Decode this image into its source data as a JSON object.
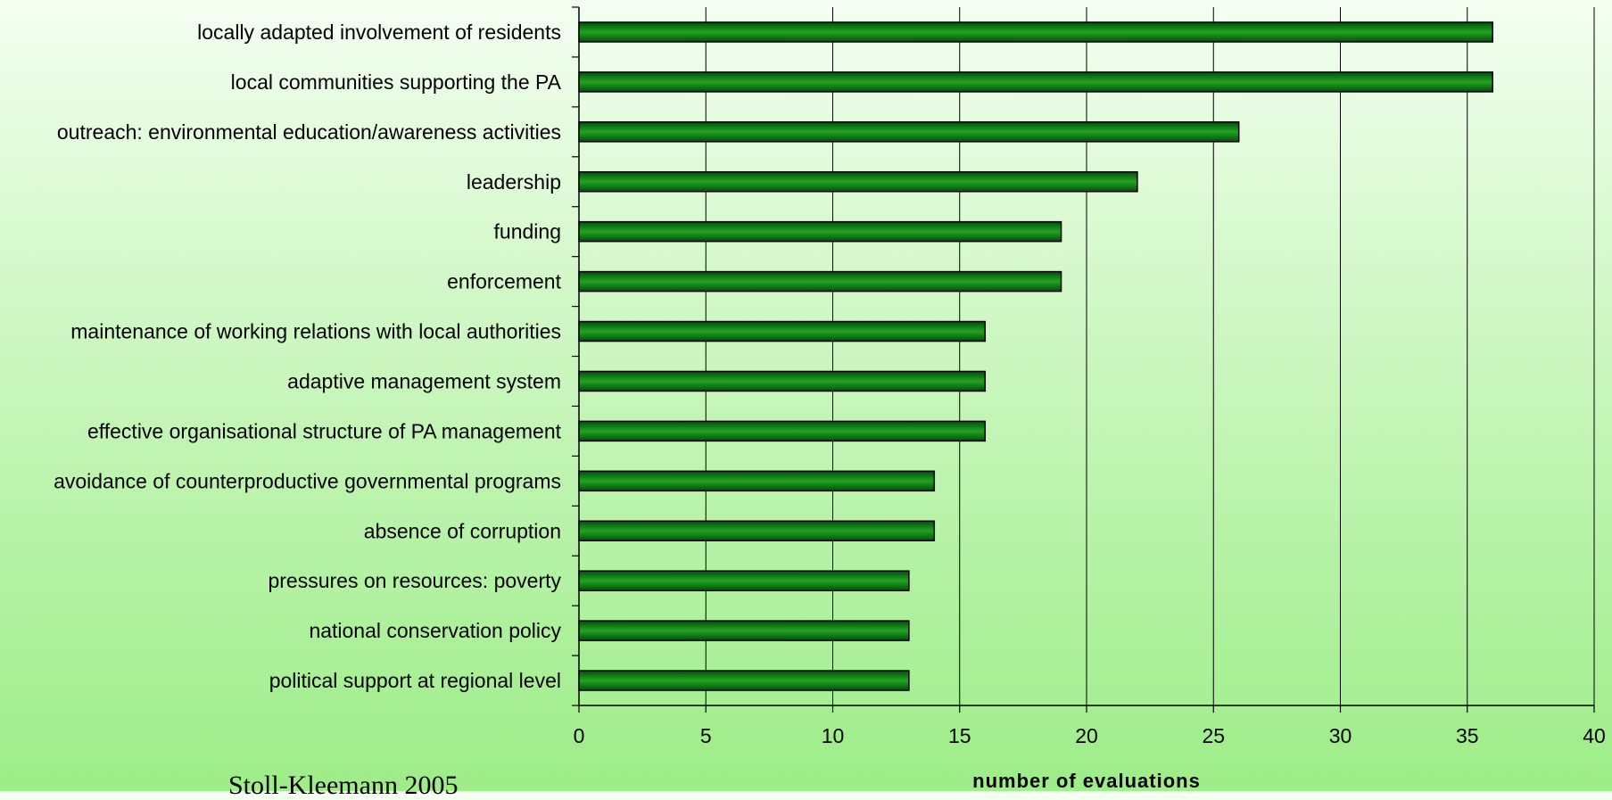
{
  "chart_data": {
    "type": "bar",
    "orientation": "horizontal",
    "categories": [
      "locally adapted involvement of residents",
      "local communities supporting the PA",
      "outreach: environmental education/awareness activities",
      "leadership",
      "funding",
      "enforcement",
      "maintenance of working relations with local authorities",
      "adaptive management system",
      "effective organisational structure of PA management",
      "avoidance of counterproductive governmental programs",
      "absence of corruption",
      "pressures on resources: poverty",
      "national conservation policy",
      "political support at regional level"
    ],
    "values": [
      36,
      36,
      26,
      22,
      19,
      19,
      16,
      16,
      16,
      14,
      14,
      13,
      13,
      13
    ],
    "xlabel": "number of evaluations",
    "xlim": [
      0,
      40
    ],
    "xticks": [
      0,
      5,
      10,
      15,
      20,
      25,
      30,
      35,
      40
    ],
    "grid": "vertical",
    "legend": "none",
    "colors": {
      "bar_dark": "#004d00",
      "bar_light": "#1e9a1e",
      "bar_edge": "#000000"
    }
  },
  "source_note": "Stoll-Kleemann 2005"
}
